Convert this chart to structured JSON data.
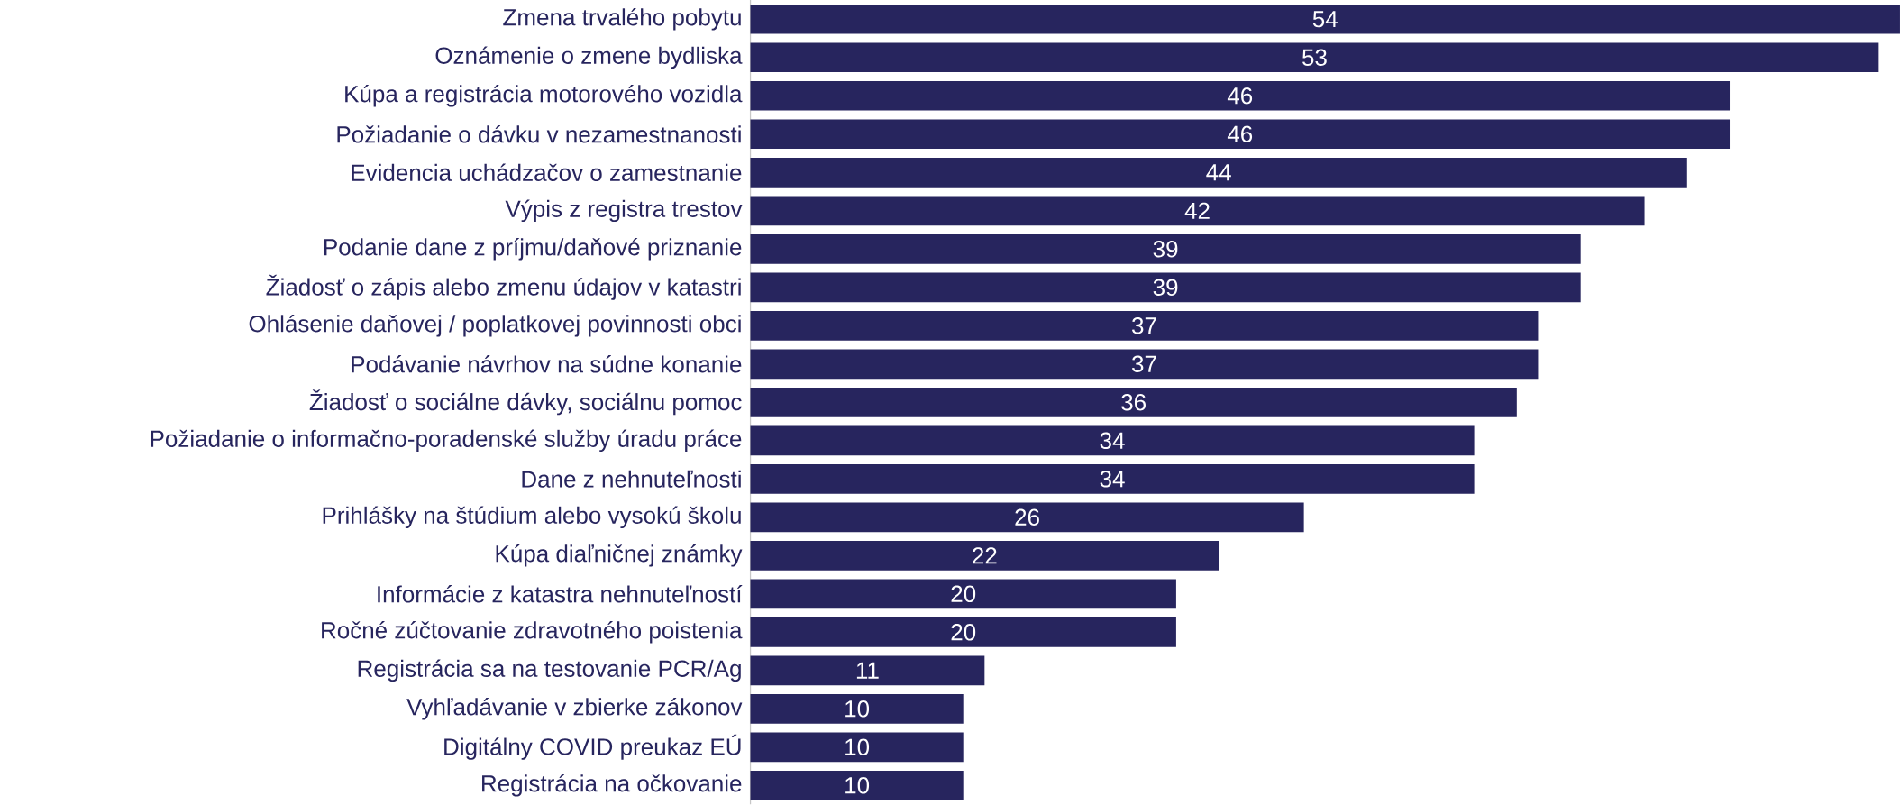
{
  "chart_data": {
    "type": "bar",
    "orientation": "horizontal",
    "categories": [
      "Zmena trvalého pobytu",
      "Oznámenie o zmene bydliska",
      "Kúpa a registrácia motorového vozidla",
      "Požiadanie o dávku v nezamestnanosti",
      "Evidencia uchádzačov o zamestnanie",
      "Výpis z registra trestov",
      "Podanie dane z príjmu/daňové priznanie",
      "Žiadosť o zápis alebo zmenu údajov v katastri",
      "Ohlásenie daňovej / poplatkovej povinnosti obci",
      "Podávanie návrhov na súdne konanie",
      "Žiadosť o sociálne dávky, sociálnu pomoc",
      "Požiadanie o informačno-poradenské služby úradu práce",
      "Dane z nehnuteľnosti",
      "Prihlášky na štúdium alebo vysokú školu",
      "Kúpa diaľničnej známky",
      "Informácie z katastra nehnuteľností",
      "Ročné zúčtovanie zdravotného poistenia",
      "Registrácia sa na testovanie PCR/Ag",
      "Vyhľadávanie v zbierke zákonov",
      "Digitálny COVID preukaz EÚ",
      "Registrácia na očkovanie"
    ],
    "values": [
      54,
      53,
      46,
      46,
      44,
      42,
      39,
      39,
      37,
      37,
      36,
      34,
      34,
      26,
      22,
      20,
      20,
      11,
      10,
      10,
      10
    ],
    "color": "#27255e",
    "xlim": [
      0,
      54
    ],
    "data_labels": true
  }
}
